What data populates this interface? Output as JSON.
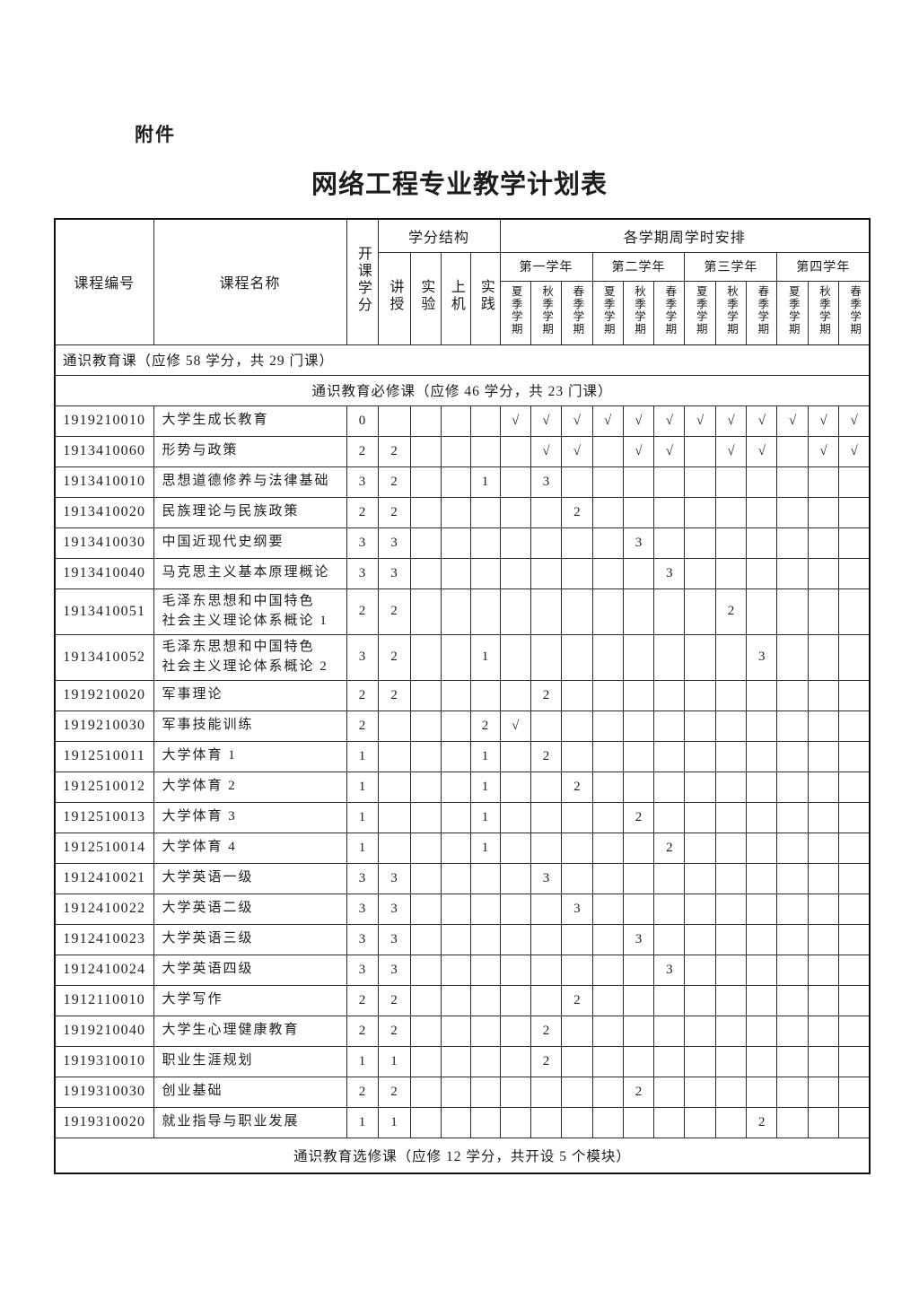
{
  "page": {
    "attachment_label": "附件",
    "title": "网络工程专业教学计划表"
  },
  "table": {
    "header": {
      "course_id": "课程编号",
      "course_name": "课程名称",
      "credits": "开课学分",
      "credit_structure": "学分结构",
      "structure_cols": [
        "讲授",
        "实验",
        "上机",
        "实践"
      ],
      "semester_arrangement": "各学期周学时安排",
      "years": [
        "第一学年",
        "第二学年",
        "第三学年",
        "第四学年"
      ],
      "semesters": [
        "夏季学期",
        "秋季学期",
        "春季学期"
      ]
    },
    "check_mark": "√",
    "rows": [
      {
        "type": "section",
        "align": "left",
        "text": "通识教育课（应修 58 学分，共 29 门课）"
      },
      {
        "type": "section",
        "align": "center",
        "text": "通识教育必修课（应修 46 学分，共 23 门课）"
      },
      {
        "type": "course",
        "id": "1919210010",
        "name": "大学生成长教育",
        "credits": "0",
        "lecture": "",
        "lab": "",
        "pc": "",
        "practice": "",
        "sems": [
          "√",
          "√",
          "√",
          "√",
          "√",
          "√",
          "√",
          "√",
          "√",
          "√",
          "√",
          "√"
        ]
      },
      {
        "type": "course",
        "id": "1913410060",
        "name": "形势与政策",
        "credits": "2",
        "lecture": "2",
        "lab": "",
        "pc": "",
        "practice": "",
        "sems": [
          "",
          "√",
          "√",
          "",
          "√",
          "√",
          "",
          "√",
          "√",
          "",
          "√",
          "√"
        ]
      },
      {
        "type": "course",
        "id": "1913410010",
        "name": "思想道德修养与法律基础",
        "credits": "3",
        "lecture": "2",
        "lab": "",
        "pc": "",
        "practice": "1",
        "sems": [
          "",
          "3",
          "",
          "",
          "",
          "",
          "",
          "",
          "",
          "",
          "",
          ""
        ]
      },
      {
        "type": "course",
        "id": "1913410020",
        "name": "民族理论与民族政策",
        "credits": "2",
        "lecture": "2",
        "lab": "",
        "pc": "",
        "practice": "",
        "sems": [
          "",
          "",
          "2",
          "",
          "",
          "",
          "",
          "",
          "",
          "",
          "",
          ""
        ]
      },
      {
        "type": "course",
        "id": "1913410030",
        "name": "中国近现代史纲要",
        "credits": "3",
        "lecture": "3",
        "lab": "",
        "pc": "",
        "practice": "",
        "sems": [
          "",
          "",
          "",
          "",
          "3",
          "",
          "",
          "",
          "",
          "",
          "",
          ""
        ]
      },
      {
        "type": "course",
        "id": "1913410040",
        "name": "马克思主义基本原理概论",
        "credits": "3",
        "lecture": "3",
        "lab": "",
        "pc": "",
        "practice": "",
        "sems": [
          "",
          "",
          "",
          "",
          "",
          "3",
          "",
          "",
          "",
          "",
          "",
          ""
        ]
      },
      {
        "type": "course",
        "tall": true,
        "id": "1913410051",
        "name": "毛泽东思想和中国特色\n社会主义理论体系概论 1",
        "credits": "2",
        "lecture": "2",
        "lab": "",
        "pc": "",
        "practice": "",
        "sems": [
          "",
          "",
          "",
          "",
          "",
          "",
          "",
          "2",
          "",
          "",
          "",
          ""
        ]
      },
      {
        "type": "course",
        "tall": true,
        "id": "1913410052",
        "name": "毛泽东思想和中国特色\n社会主义理论体系概论 2",
        "credits": "3",
        "lecture": "2",
        "lab": "",
        "pc": "",
        "practice": "1",
        "sems": [
          "",
          "",
          "",
          "",
          "",
          "",
          "",
          "",
          "3",
          "",
          "",
          ""
        ]
      },
      {
        "type": "course",
        "id": "1919210020",
        "name": "军事理论",
        "credits": "2",
        "lecture": "2",
        "lab": "",
        "pc": "",
        "practice": "",
        "sems": [
          "",
          "2",
          "",
          "",
          "",
          "",
          "",
          "",
          "",
          "",
          "",
          ""
        ]
      },
      {
        "type": "course",
        "id": "1919210030",
        "name": "军事技能训练",
        "credits": "2",
        "lecture": "",
        "lab": "",
        "pc": "",
        "practice": "2",
        "sems": [
          "√",
          "",
          "",
          "",
          "",
          "",
          "",
          "",
          "",
          "",
          "",
          ""
        ]
      },
      {
        "type": "course",
        "id": "1912510011",
        "name": "大学体育 1",
        "credits": "1",
        "lecture": "",
        "lab": "",
        "pc": "",
        "practice": "1",
        "sems": [
          "",
          "2",
          "",
          "",
          "",
          "",
          "",
          "",
          "",
          "",
          "",
          ""
        ]
      },
      {
        "type": "course",
        "id": "1912510012",
        "name": "大学体育 2",
        "credits": "1",
        "lecture": "",
        "lab": "",
        "pc": "",
        "practice": "1",
        "sems": [
          "",
          "",
          "2",
          "",
          "",
          "",
          "",
          "",
          "",
          "",
          "",
          ""
        ]
      },
      {
        "type": "course",
        "id": "1912510013",
        "name": "大学体育 3",
        "credits": "1",
        "lecture": "",
        "lab": "",
        "pc": "",
        "practice": "1",
        "sems": [
          "",
          "",
          "",
          "",
          "2",
          "",
          "",
          "",
          "",
          "",
          "",
          ""
        ]
      },
      {
        "type": "course",
        "id": "1912510014",
        "name": "大学体育 4",
        "credits": "1",
        "lecture": "",
        "lab": "",
        "pc": "",
        "practice": "1",
        "sems": [
          "",
          "",
          "",
          "",
          "",
          "2",
          "",
          "",
          "",
          "",
          "",
          ""
        ]
      },
      {
        "type": "course",
        "id": "1912410021",
        "name": "大学英语一级",
        "credits": "3",
        "lecture": "3",
        "lab": "",
        "pc": "",
        "practice": "",
        "sems": [
          "",
          "3",
          "",
          "",
          "",
          "",
          "",
          "",
          "",
          "",
          "",
          ""
        ]
      },
      {
        "type": "course",
        "id": "1912410022",
        "name": "大学英语二级",
        "credits": "3",
        "lecture": "3",
        "lab": "",
        "pc": "",
        "practice": "",
        "sems": [
          "",
          "",
          "3",
          "",
          "",
          "",
          "",
          "",
          "",
          "",
          "",
          ""
        ]
      },
      {
        "type": "course",
        "id": "1912410023",
        "name": "大学英语三级",
        "credits": "3",
        "lecture": "3",
        "lab": "",
        "pc": "",
        "practice": "",
        "sems": [
          "",
          "",
          "",
          "",
          "3",
          "",
          "",
          "",
          "",
          "",
          "",
          ""
        ]
      },
      {
        "type": "course",
        "id": "1912410024",
        "name": "大学英语四级",
        "credits": "3",
        "lecture": "3",
        "lab": "",
        "pc": "",
        "practice": "",
        "sems": [
          "",
          "",
          "",
          "",
          "",
          "3",
          "",
          "",
          "",
          "",
          "",
          ""
        ]
      },
      {
        "type": "course",
        "id": "1912110010",
        "name": "大学写作",
        "credits": "2",
        "lecture": "2",
        "lab": "",
        "pc": "",
        "practice": "",
        "sems": [
          "",
          "",
          "2",
          "",
          "",
          "",
          "",
          "",
          "",
          "",
          "",
          ""
        ]
      },
      {
        "type": "course",
        "id": "1919210040",
        "name": "大学生心理健康教育",
        "credits": "2",
        "lecture": "2",
        "lab": "",
        "pc": "",
        "practice": "",
        "sems": [
          "",
          "2",
          "",
          "",
          "",
          "",
          "",
          "",
          "",
          "",
          "",
          ""
        ]
      },
      {
        "type": "course",
        "id": "1919310010",
        "name": "职业生涯规划",
        "credits": "1",
        "lecture": "1",
        "lab": "",
        "pc": "",
        "practice": "",
        "sems": [
          "",
          "2",
          "",
          "",
          "",
          "",
          "",
          "",
          "",
          "",
          "",
          ""
        ]
      },
      {
        "type": "course",
        "id": "1919310030",
        "name": "创业基础",
        "credits": "2",
        "lecture": "2",
        "lab": "",
        "pc": "",
        "practice": "",
        "sems": [
          "",
          "",
          "",
          "",
          "2",
          "",
          "",
          "",
          "",
          "",
          "",
          ""
        ]
      },
      {
        "type": "course",
        "id": "1919310020",
        "name": "就业指导与职业发展",
        "credits": "1",
        "lecture": "1",
        "lab": "",
        "pc": "",
        "practice": "",
        "sems": [
          "",
          "",
          "",
          "",
          "",
          "",
          "",
          "",
          "2",
          "",
          "",
          ""
        ]
      },
      {
        "type": "section",
        "align": "center",
        "text": "通识教育选修课（应修 12 学分，共开设 5 个模块）"
      }
    ]
  }
}
